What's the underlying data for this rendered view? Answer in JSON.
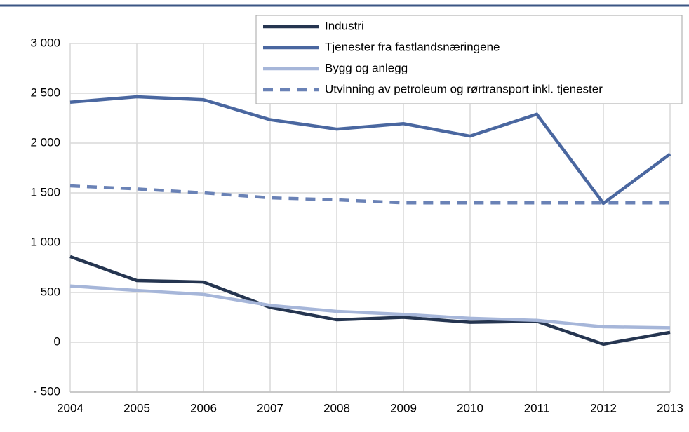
{
  "chart_data": {
    "type": "line",
    "x": [
      2004,
      2005,
      2006,
      2007,
      2008,
      2009,
      2010,
      2011,
      2012,
      2013
    ],
    "xlim": [
      2004,
      2013
    ],
    "xticks": [
      2004,
      2005,
      2006,
      2007,
      2008,
      2009,
      2010,
      2011,
      2012,
      2013
    ],
    "ylim": [
      -500,
      3000
    ],
    "yticks": [
      {
        "value": -500,
        "label": "- 500"
      },
      0,
      500,
      {
        "value": 1000,
        "label": "1 000"
      },
      {
        "value": 1500,
        "label": "1 500"
      },
      {
        "value": 2000,
        "label": "2 000"
      },
      {
        "value": 2500,
        "label": "2 500"
      },
      {
        "value": 3000,
        "label": "3 000"
      }
    ],
    "grid": true,
    "legend": "top-right",
    "series": [
      {
        "name": "Industri",
        "color": "#253550",
        "dash": false,
        "values": [
          860,
          620,
          605,
          350,
          225,
          250,
          200,
          210,
          -20,
          100
        ]
      },
      {
        "name": "Tjenester fra fastlandsnæringene",
        "color": "#4a67a0",
        "dash": false,
        "values": [
          2410,
          2465,
          2435,
          2235,
          2140,
          2195,
          2070,
          2290,
          1395,
          1890
        ]
      },
      {
        "name": "Bygg og anlegg",
        "color": "#a6b6d9",
        "dash": false,
        "values": [
          565,
          520,
          480,
          370,
          310,
          280,
          240,
          220,
          155,
          145
        ]
      },
      {
        "name": "Utvinning av petroleum og rørtransport inkl. tjenester",
        "color": "#6a82b6",
        "dash": true,
        "values": [
          1570,
          1540,
          1500,
          1450,
          1430,
          1400,
          1400,
          1400,
          1400,
          1400
        ]
      }
    ]
  }
}
